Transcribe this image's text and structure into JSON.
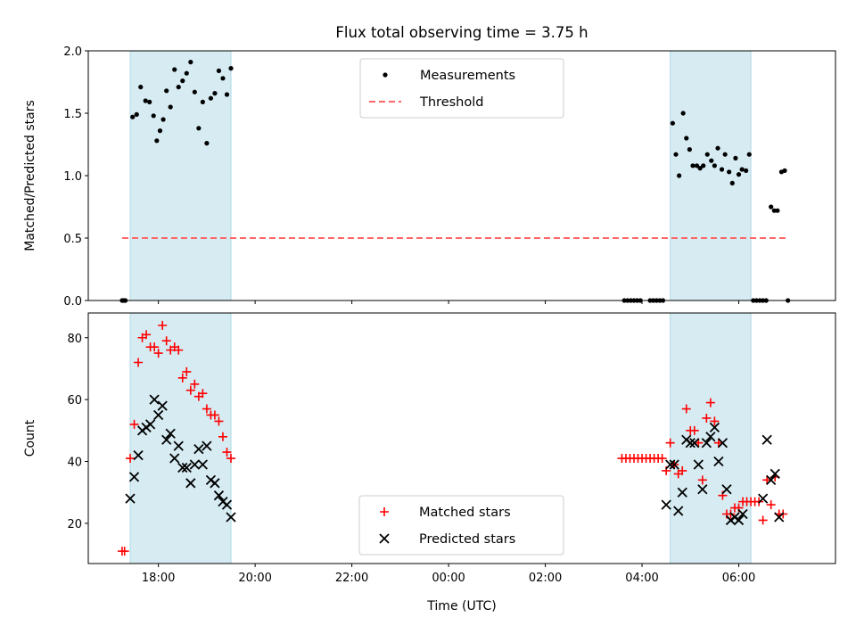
{
  "title": "Flux total observing time = 3.75 h",
  "colors": {
    "span": "#add8e6",
    "threshold": "#ff6666",
    "matched": "#ff0000",
    "predicted": "#000000",
    "measure": "#000000"
  },
  "chart_data": [
    {
      "type": "scatter",
      "ylabel": "Matched/Predicted stars",
      "ylim": [
        0,
        2.0
      ],
      "yticks": [
        "0.0",
        "0.5",
        "1.0",
        "1.5",
        "2.0"
      ],
      "legend": {
        "placement": "upper-center",
        "entries": [
          "Measurements",
          "Threshold"
        ]
      },
      "spans": [
        [
          "17:25",
          "19:30"
        ],
        [
          "04:35",
          "06:15"
        ]
      ],
      "threshold": {
        "name": "Threshold",
        "y": 0.5,
        "x": [
          "17:15",
          "07:00"
        ]
      },
      "series": [
        {
          "name": "Measurements",
          "points": [
            [
              "17:15",
              0
            ],
            [
              "17:17",
              0
            ],
            [
              "17:19",
              0
            ],
            [
              "17:28",
              1.47
            ],
            [
              "17:33",
              1.49
            ],
            [
              "17:38",
              1.71
            ],
            [
              "17:44",
              1.6
            ],
            [
              "17:49",
              1.59
            ],
            [
              "17:54",
              1.48
            ],
            [
              "17:58",
              1.28
            ],
            [
              "18:02",
              1.36
            ],
            [
              "18:06",
              1.45
            ],
            [
              "18:10",
              1.68
            ],
            [
              "18:15",
              1.55
            ],
            [
              "18:20",
              1.85
            ],
            [
              "18:25",
              1.71
            ],
            [
              "18:30",
              1.76
            ],
            [
              "18:35",
              1.82
            ],
            [
              "18:40",
              1.91
            ],
            [
              "18:45",
              1.67
            ],
            [
              "18:50",
              1.38
            ],
            [
              "18:55",
              1.59
            ],
            [
              "19:00",
              1.26
            ],
            [
              "19:05",
              1.62
            ],
            [
              "19:10",
              1.66
            ],
            [
              "19:15",
              1.84
            ],
            [
              "19:20",
              1.78
            ],
            [
              "19:25",
              1.65
            ],
            [
              "19:30",
              1.86
            ],
            [
              "03:38",
              0
            ],
            [
              "03:42",
              0
            ],
            [
              "03:46",
              0
            ],
            [
              "03:50",
              0
            ],
            [
              "03:54",
              0
            ],
            [
              "03:58",
              0
            ],
            [
              "04:10",
              0
            ],
            [
              "04:14",
              0
            ],
            [
              "04:18",
              0
            ],
            [
              "04:22",
              0
            ],
            [
              "04:26",
              0
            ],
            [
              "04:38",
              1.42
            ],
            [
              "04:42",
              1.17
            ],
            [
              "04:46",
              1.0
            ],
            [
              "04:51",
              1.5
            ],
            [
              "04:55",
              1.3
            ],
            [
              "04:59",
              1.21
            ],
            [
              "05:03",
              1.08
            ],
            [
              "05:08",
              1.08
            ],
            [
              "05:12",
              1.06
            ],
            [
              "05:16",
              1.08
            ],
            [
              "05:21",
              1.17
            ],
            [
              "05:26",
              1.12
            ],
            [
              "05:30",
              1.08
            ],
            [
              "05:34",
              1.22
            ],
            [
              "05:39",
              1.05
            ],
            [
              "05:43",
              1.17
            ],
            [
              "05:48",
              1.03
            ],
            [
              "05:52",
              0.94
            ],
            [
              "05:56",
              1.14
            ],
            [
              "06:00",
              1.01
            ],
            [
              "06:04",
              1.05
            ],
            [
              "06:09",
              1.04
            ],
            [
              "06:13",
              1.17
            ],
            [
              "06:18",
              0
            ],
            [
              "06:22",
              0
            ],
            [
              "06:26",
              0
            ],
            [
              "06:30",
              0
            ],
            [
              "06:34",
              0
            ],
            [
              "06:40",
              0.75
            ],
            [
              "06:44",
              0.72
            ],
            [
              "06:48",
              0.72
            ],
            [
              "06:53",
              1.03
            ],
            [
              "06:57",
              1.04
            ],
            [
              "07:01",
              0
            ]
          ]
        }
      ]
    },
    {
      "type": "scatter",
      "xlabel": "Time (UTC)",
      "ylabel": "Count",
      "ylim": [
        7,
        88
      ],
      "yticks": [
        "20",
        "40",
        "60",
        "80"
      ],
      "xticks": [
        "18:00",
        "20:00",
        "22:00",
        "00:00",
        "02:00",
        "04:00",
        "06:00"
      ],
      "legend": {
        "placement": "lower-center",
        "entries": [
          "Matched stars",
          "Predicted stars"
        ]
      },
      "spans": [
        [
          "17:25",
          "19:30"
        ],
        [
          "04:35",
          "06:15"
        ]
      ],
      "series": [
        {
          "name": "Matched stars",
          "marker": "plus",
          "points": [
            [
              "17:15",
              11
            ],
            [
              "17:18",
              11
            ],
            [
              "17:25",
              41
            ],
            [
              "17:30",
              52
            ],
            [
              "17:35",
              72
            ],
            [
              "17:40",
              80
            ],
            [
              "17:45",
              81
            ],
            [
              "17:50",
              77
            ],
            [
              "17:55",
              77
            ],
            [
              "18:00",
              75
            ],
            [
              "18:05",
              84
            ],
            [
              "18:10",
              79
            ],
            [
              "18:15",
              76
            ],
            [
              "18:20",
              77
            ],
            [
              "18:25",
              76
            ],
            [
              "18:30",
              67
            ],
            [
              "18:35",
              69
            ],
            [
              "18:40",
              63
            ],
            [
              "18:45",
              65
            ],
            [
              "18:50",
              61
            ],
            [
              "18:55",
              62
            ],
            [
              "19:00",
              57
            ],
            [
              "19:05",
              55
            ],
            [
              "19:10",
              55
            ],
            [
              "19:15",
              53
            ],
            [
              "19:20",
              48
            ],
            [
              "19:25",
              43
            ],
            [
              "19:30",
              41
            ],
            [
              "03:35",
              41
            ],
            [
              "03:40",
              41
            ],
            [
              "03:45",
              41
            ],
            [
              "03:50",
              41
            ],
            [
              "03:55",
              41
            ],
            [
              "04:00",
              41
            ],
            [
              "04:05",
              41
            ],
            [
              "04:10",
              41
            ],
            [
              "04:15",
              41
            ],
            [
              "04:20",
              41
            ],
            [
              "04:25",
              41
            ],
            [
              "04:30",
              37
            ],
            [
              "04:35",
              46
            ],
            [
              "04:40",
              39
            ],
            [
              "04:45",
              36
            ],
            [
              "04:50",
              37
            ],
            [
              "04:55",
              57
            ],
            [
              "05:00",
              50
            ],
            [
              "05:05",
              50
            ],
            [
              "05:10",
              46
            ],
            [
              "05:15",
              34
            ],
            [
              "05:20",
              54
            ],
            [
              "05:25",
              59
            ],
            [
              "05:30",
              53
            ],
            [
              "05:35",
              46
            ],
            [
              "05:40",
              29
            ],
            [
              "05:45",
              23
            ],
            [
              "05:50",
              23
            ],
            [
              "05:55",
              25
            ],
            [
              "06:00",
              25
            ],
            [
              "06:05",
              27
            ],
            [
              "06:10",
              27
            ],
            [
              "06:15",
              27
            ],
            [
              "06:20",
              27
            ],
            [
              "06:25",
              27
            ],
            [
              "06:30",
              21
            ],
            [
              "06:35",
              34
            ],
            [
              "06:40",
              26
            ],
            [
              "06:45",
              35
            ],
            [
              "06:50",
              23
            ],
            [
              "06:55",
              23
            ]
          ]
        },
        {
          "name": "Predicted stars",
          "marker": "x",
          "points": [
            [
              "17:25",
              28
            ],
            [
              "17:30",
              35
            ],
            [
              "17:35",
              42
            ],
            [
              "17:40",
              50
            ],
            [
              "17:45",
              51
            ],
            [
              "17:50",
              52
            ],
            [
              "17:55",
              60
            ],
            [
              "18:00",
              55
            ],
            [
              "18:05",
              58
            ],
            [
              "18:10",
              47
            ],
            [
              "18:15",
              49
            ],
            [
              "18:20",
              41
            ],
            [
              "18:25",
              45
            ],
            [
              "18:30",
              38
            ],
            [
              "18:35",
              38
            ],
            [
              "18:40",
              33
            ],
            [
              "18:45",
              39
            ],
            [
              "18:50",
              44
            ],
            [
              "18:55",
              39
            ],
            [
              "19:00",
              45
            ],
            [
              "19:05",
              34
            ],
            [
              "19:10",
              33
            ],
            [
              "19:15",
              29
            ],
            [
              "19:20",
              27
            ],
            [
              "19:25",
              26
            ],
            [
              "19:30",
              22
            ],
            [
              "04:30",
              26
            ],
            [
              "04:35",
              39
            ],
            [
              "04:40",
              39
            ],
            [
              "04:45",
              24
            ],
            [
              "04:50",
              30
            ],
            [
              "04:55",
              47
            ],
            [
              "05:00",
              46
            ],
            [
              "05:05",
              46
            ],
            [
              "05:10",
              39
            ],
            [
              "05:15",
              31
            ],
            [
              "05:20",
              46
            ],
            [
              "05:25",
              48
            ],
            [
              "05:30",
              51
            ],
            [
              "05:35",
              40
            ],
            [
              "05:40",
              46
            ],
            [
              "05:45",
              31
            ],
            [
              "05:50",
              21
            ],
            [
              "05:55",
              22
            ],
            [
              "06:00",
              21
            ],
            [
              "06:05",
              23
            ],
            [
              "06:30",
              28
            ],
            [
              "06:35",
              47
            ],
            [
              "06:40",
              34
            ],
            [
              "06:45",
              36
            ],
            [
              "06:50",
              22
            ]
          ]
        }
      ]
    }
  ]
}
